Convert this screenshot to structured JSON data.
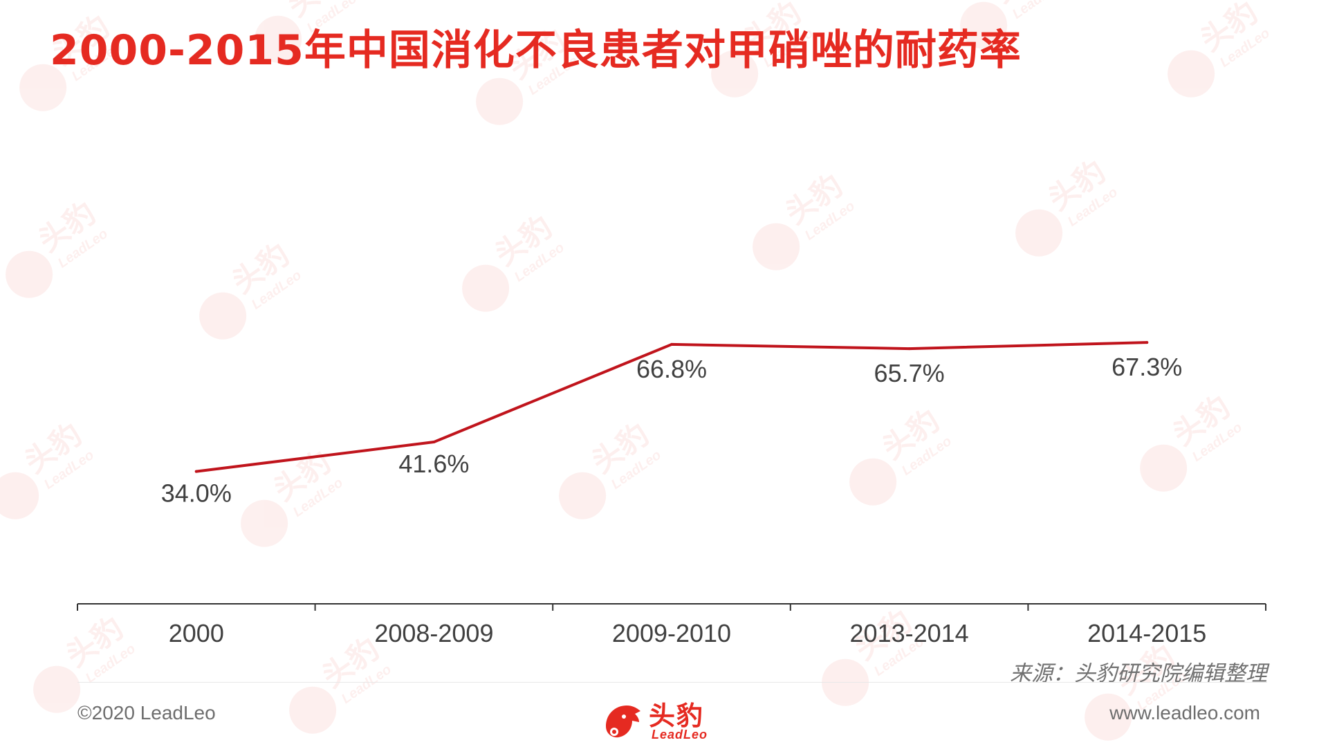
{
  "header": {
    "title": "2000-2015年中国消化不良患者对甲硝唑的耐药率"
  },
  "chart_data": {
    "type": "line",
    "title": "2000-2015年中国消化不良患者对甲硝唑的耐药率",
    "categories": [
      "2000",
      "2008-2009",
      "2009-2010",
      "2013-2014",
      "2014-2015"
    ],
    "values": [
      34.0,
      41.6,
      66.8,
      65.7,
      67.3
    ],
    "data_labels": [
      "34.0%",
      "41.6%",
      "66.8%",
      "65.7%",
      "67.3%"
    ],
    "xlabel": "",
    "ylabel": "",
    "y_axis_visible": false,
    "grid": false,
    "line_color": "#c0141c"
  },
  "footer": {
    "source": "来源：头豹研究院编辑整理",
    "copyright": "©2020 LeadLeo",
    "website": "www.leadleo.com",
    "brand_cn": "头豹",
    "brand_en": "LeadLeo"
  },
  "watermark": {
    "cn": "头豹",
    "en": "LeadLeo"
  },
  "colors": {
    "title": "#e52a21",
    "line": "#c0141c",
    "axis": "#333333",
    "label": "#404040",
    "muted": "#707070"
  }
}
